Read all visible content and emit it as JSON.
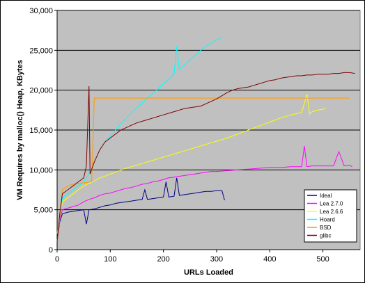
{
  "chart_data": {
    "type": "line",
    "title": "",
    "xlabel": "URLs Loaded",
    "ylabel": "VM Requires by malloc() Heap, KBytes",
    "xlim": [
      0,
      570
    ],
    "ylim": [
      0,
      30000
    ],
    "x_ticks": [
      0,
      100,
      200,
      300,
      400,
      500
    ],
    "y_ticks": [
      0,
      5000,
      10000,
      15000,
      20000,
      25000,
      30000
    ],
    "x_tick_labels": [
      "0",
      "100",
      "200",
      "300",
      "400",
      "500"
    ],
    "y_tick_labels": [
      "0",
      "5,000",
      "10,000",
      "15,000",
      "20,000",
      "25,000",
      "30,000"
    ],
    "grid": "horizontal",
    "legend_position": "bottom-right",
    "plot_background": "#c0c0c0",
    "series": [
      {
        "name": "Ideal",
        "color": "#000080",
        "points": [
          [
            0,
            1000
          ],
          [
            5,
            3500
          ],
          [
            10,
            4500
          ],
          [
            20,
            4700
          ],
          [
            30,
            4800
          ],
          [
            40,
            4900
          ],
          [
            50,
            5000
          ],
          [
            55,
            3200
          ],
          [
            60,
            5000
          ],
          [
            70,
            5100
          ],
          [
            80,
            5300
          ],
          [
            90,
            5500
          ],
          [
            100,
            5600
          ],
          [
            110,
            5800
          ],
          [
            120,
            5900
          ],
          [
            130,
            6000
          ],
          [
            140,
            6100
          ],
          [
            150,
            6200
          ],
          [
            160,
            6300
          ],
          [
            165,
            7500
          ],
          [
            170,
            6300
          ],
          [
            180,
            6400
          ],
          [
            190,
            6500
          ],
          [
            200,
            6600
          ],
          [
            205,
            8500
          ],
          [
            210,
            6600
          ],
          [
            220,
            6700
          ],
          [
            225,
            9000
          ],
          [
            230,
            6800
          ],
          [
            240,
            6900
          ],
          [
            250,
            7000
          ],
          [
            260,
            7100
          ],
          [
            270,
            7200
          ],
          [
            280,
            7300
          ],
          [
            290,
            7300
          ],
          [
            300,
            7400
          ],
          [
            310,
            7400
          ],
          [
            315,
            6200
          ]
        ]
      },
      {
        "name": "Lea 2.7.0",
        "color": "#ff00ff",
        "points": [
          [
            0,
            1000
          ],
          [
            5,
            3800
          ],
          [
            10,
            5000
          ],
          [
            20,
            5200
          ],
          [
            30,
            5400
          ],
          [
            40,
            5600
          ],
          [
            50,
            6000
          ],
          [
            60,
            6300
          ],
          [
            70,
            6500
          ],
          [
            80,
            6800
          ],
          [
            90,
            7000
          ],
          [
            100,
            7100
          ],
          [
            110,
            7300
          ],
          [
            120,
            7500
          ],
          [
            130,
            7700
          ],
          [
            140,
            7800
          ],
          [
            150,
            8000
          ],
          [
            160,
            8200
          ],
          [
            170,
            8300
          ],
          [
            180,
            8500
          ],
          [
            190,
            8600
          ],
          [
            200,
            8800
          ],
          [
            210,
            9000
          ],
          [
            220,
            9100
          ],
          [
            230,
            9200
          ],
          [
            240,
            9300
          ],
          [
            250,
            9400
          ],
          [
            260,
            9500
          ],
          [
            270,
            9600
          ],
          [
            280,
            9700
          ],
          [
            290,
            9800
          ],
          [
            300,
            9800
          ],
          [
            320,
            9900
          ],
          [
            340,
            10000
          ],
          [
            360,
            10100
          ],
          [
            380,
            10200
          ],
          [
            400,
            10300
          ],
          [
            420,
            10300
          ],
          [
            440,
            10400
          ],
          [
            460,
            10400
          ],
          [
            465,
            13000
          ],
          [
            470,
            10400
          ],
          [
            480,
            10500
          ],
          [
            500,
            10500
          ],
          [
            520,
            10500
          ],
          [
            530,
            12300
          ],
          [
            540,
            10500
          ],
          [
            550,
            10600
          ],
          [
            555,
            10400
          ]
        ]
      },
      {
        "name": "Lea 2.6.6",
        "color": "#ffff00",
        "points": [
          [
            0,
            1000
          ],
          [
            5,
            4000
          ],
          [
            10,
            6000
          ],
          [
            20,
            6500
          ],
          [
            30,
            7000
          ],
          [
            40,
            7500
          ],
          [
            50,
            8000
          ],
          [
            60,
            8300
          ],
          [
            70,
            8600
          ],
          [
            80,
            9000
          ],
          [
            90,
            9200
          ],
          [
            100,
            9500
          ],
          [
            110,
            9700
          ],
          [
            120,
            10000
          ],
          [
            130,
            10200
          ],
          [
            140,
            10400
          ],
          [
            150,
            10600
          ],
          [
            160,
            10800
          ],
          [
            170,
            11000
          ],
          [
            180,
            11200
          ],
          [
            190,
            11400
          ],
          [
            200,
            11600
          ],
          [
            210,
            11800
          ],
          [
            220,
            12000
          ],
          [
            230,
            12200
          ],
          [
            240,
            12400
          ],
          [
            250,
            12600
          ],
          [
            260,
            12800
          ],
          [
            270,
            13000
          ],
          [
            280,
            13200
          ],
          [
            290,
            13400
          ],
          [
            300,
            13600
          ],
          [
            320,
            14000
          ],
          [
            340,
            14500
          ],
          [
            360,
            15000
          ],
          [
            380,
            15500
          ],
          [
            400,
            16000
          ],
          [
            420,
            16500
          ],
          [
            440,
            16900
          ],
          [
            460,
            17200
          ],
          [
            470,
            19500
          ],
          [
            475,
            17000
          ],
          [
            480,
            17300
          ],
          [
            490,
            17500
          ],
          [
            500,
            17600
          ],
          [
            505,
            17800
          ]
        ]
      },
      {
        "name": "Hoard",
        "color": "#00ffff",
        "points": [
          [
            0,
            2000
          ],
          [
            5,
            4000
          ],
          [
            10,
            6500
          ],
          [
            20,
            7000
          ],
          [
            30,
            7500
          ],
          [
            40,
            8000
          ],
          [
            50,
            8500
          ],
          [
            60,
            9500
          ],
          [
            70,
            11000
          ],
          [
            80,
            12500
          ],
          [
            90,
            13500
          ],
          [
            100,
            14200
          ],
          [
            110,
            15000
          ],
          [
            120,
            15800
          ],
          [
            130,
            16500
          ],
          [
            140,
            17200
          ],
          [
            150,
            17800
          ],
          [
            160,
            18400
          ],
          [
            170,
            19000
          ],
          [
            180,
            19600
          ],
          [
            190,
            20200
          ],
          [
            200,
            20800
          ],
          [
            210,
            21400
          ],
          [
            220,
            22000
          ],
          [
            225,
            25500
          ],
          [
            230,
            22600
          ],
          [
            240,
            23200
          ],
          [
            250,
            23800
          ],
          [
            260,
            24400
          ],
          [
            270,
            25000
          ],
          [
            280,
            25500
          ],
          [
            290,
            25900
          ],
          [
            300,
            26300
          ],
          [
            310,
            26600
          ]
        ]
      },
      {
        "name": "BSD",
        "color": "#ff9900",
        "points": [
          [
            0,
            1000
          ],
          [
            5,
            4000
          ],
          [
            10,
            7500
          ],
          [
            20,
            8000
          ],
          [
            30,
            8200
          ],
          [
            40,
            8300
          ],
          [
            50,
            8400
          ],
          [
            55,
            8400
          ],
          [
            60,
            8500
          ],
          [
            65,
            8500
          ],
          [
            70,
            19000
          ],
          [
            100,
            19000
          ],
          [
            200,
            19000
          ],
          [
            300,
            19000
          ],
          [
            400,
            19000
          ],
          [
            470,
            19000
          ],
          [
            500,
            19000
          ],
          [
            550,
            19000
          ]
        ]
      },
      {
        "name": "glibc",
        "color": "#800000",
        "points": [
          [
            0,
            1000
          ],
          [
            5,
            4500
          ],
          [
            10,
            7000
          ],
          [
            20,
            7500
          ],
          [
            30,
            8000
          ],
          [
            40,
            8500
          ],
          [
            50,
            9000
          ],
          [
            55,
            10500
          ],
          [
            60,
            20500
          ],
          [
            62,
            9500
          ],
          [
            70,
            11000
          ],
          [
            80,
            12500
          ],
          [
            90,
            13500
          ],
          [
            100,
            14000
          ],
          [
            110,
            14500
          ],
          [
            120,
            15000
          ],
          [
            130,
            15300
          ],
          [
            140,
            15600
          ],
          [
            150,
            15900
          ],
          [
            160,
            16100
          ],
          [
            170,
            16300
          ],
          [
            180,
            16500
          ],
          [
            190,
            16700
          ],
          [
            200,
            16900
          ],
          [
            210,
            17100
          ],
          [
            220,
            17300
          ],
          [
            230,
            17500
          ],
          [
            240,
            17700
          ],
          [
            250,
            17800
          ],
          [
            260,
            17900
          ],
          [
            270,
            18000
          ],
          [
            280,
            18300
          ],
          [
            290,
            18600
          ],
          [
            300,
            18900
          ],
          [
            310,
            19300
          ],
          [
            320,
            19700
          ],
          [
            330,
            20000
          ],
          [
            340,
            20200
          ],
          [
            350,
            20300
          ],
          [
            360,
            20400
          ],
          [
            370,
            20600
          ],
          [
            380,
            20800
          ],
          [
            390,
            21000
          ],
          [
            400,
            21200
          ],
          [
            410,
            21300
          ],
          [
            420,
            21500
          ],
          [
            430,
            21600
          ],
          [
            440,
            21700
          ],
          [
            450,
            21800
          ],
          [
            460,
            21800
          ],
          [
            470,
            21900
          ],
          [
            480,
            21900
          ],
          [
            490,
            22000
          ],
          [
            500,
            22000
          ],
          [
            510,
            22000
          ],
          [
            520,
            22100
          ],
          [
            530,
            22100
          ],
          [
            540,
            22200
          ],
          [
            550,
            22200
          ],
          [
            560,
            22100
          ]
        ]
      }
    ]
  }
}
